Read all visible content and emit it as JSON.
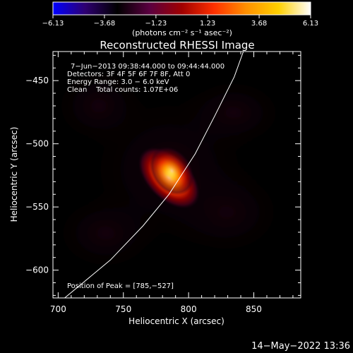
{
  "chart_data": {
    "type": "heatmap",
    "title": "Reconstructed RHESSI Image",
    "xlabel": "Heliocentric X (arcsec)",
    "ylabel": "Heliocentric Y (arcsec)",
    "xlim": [
      696,
      886
    ],
    "ylim": [
      -622,
      -427
    ],
    "xticks": [
      700,
      750,
      800,
      850
    ],
    "xtick_labels": [
      "700",
      "750",
      "800",
      "850"
    ],
    "yticks": [
      -450,
      -500,
      -550,
      -600
    ],
    "ytick_labels": [
      "−450",
      "−500",
      "−550",
      "−600"
    ],
    "colorbar": {
      "range": [
        -6.13,
        6.13
      ],
      "ticks": [
        -6.13,
        -3.68,
        -1.23,
        1.23,
        3.68,
        6.13
      ],
      "tick_labels": [
        "−6.13",
        "−3.68",
        "−1.23",
        "1.23",
        "3.68",
        "6.13"
      ],
      "units": "(photons cm⁻² s⁻¹ asec⁻²)",
      "colors": [
        "#0000ff",
        "#2e0070",
        "#000000",
        "#5a0040",
        "#a00000",
        "#ff3000",
        "#ff9000",
        "#ffd000",
        "#ffffff"
      ]
    },
    "source": {
      "peak": [
        785,
        -527
      ],
      "peak_value": 6.13,
      "orientation_deg": 135,
      "sigma_major_arcsec": 12,
      "sigma_minor_arcsec": 7
    },
    "limb_curve": {
      "x": [
        705,
        740,
        765,
        785,
        805,
        820,
        835,
        842
      ],
      "y": [
        -622,
        -592,
        -565,
        -540,
        -508,
        -478,
        -447,
        -427
      ]
    },
    "annotations": [
      "7−Jun−2013 09:38:44.000 to 09:44:44.000",
      "Detectors: 3F 4F 5F 6F 7F 8F, Att 0",
      "Energy Range: 3.0 − 6.0 keV",
      "Clean    Total counts: 1.07E+06",
      "Position of Peak = [785,−527]"
    ],
    "footer": "14−May−2022 13:36"
  }
}
